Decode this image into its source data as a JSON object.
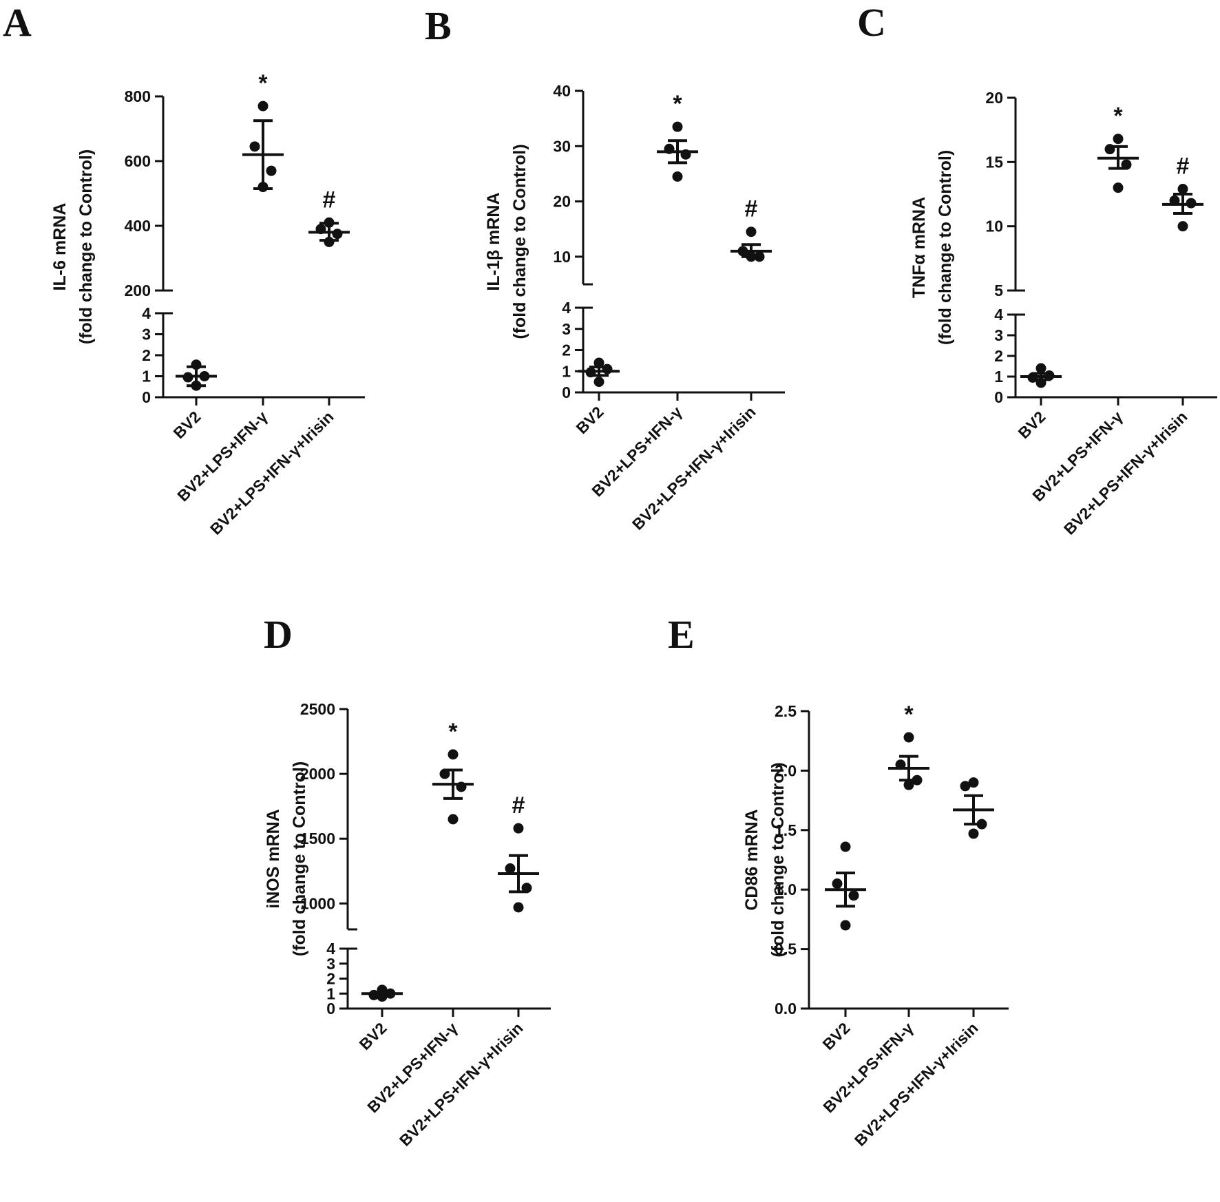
{
  "chart_data": [
    {
      "panel": "A",
      "type": "scatter",
      "ylabel": [
        "IL-6 mRNA",
        "(fold change to Control)"
      ],
      "categories": [
        "BV2",
        "BV2+LPS+IFN-γ",
        "BV2+LPS+IFN-γ+Irisin"
      ],
      "axis_break": true,
      "lower_ylim": [
        0,
        4
      ],
      "lower_ticks": [
        0,
        1,
        2,
        3,
        4
      ],
      "upper_ylim": [
        200,
        800
      ],
      "upper_ticks": [
        200,
        400,
        600,
        800
      ],
      "groups": [
        {
          "points": [
            0.55,
            0.95,
            1.0,
            1.55
          ],
          "mean": 1.0,
          "err_low": 0.55,
          "err_high": 1.45,
          "sig": ""
        },
        {
          "points": [
            770,
            645,
            570,
            520
          ],
          "mean": 620,
          "err_low": 515,
          "err_high": 725,
          "sig": "*"
        },
        {
          "points": [
            410,
            390,
            375,
            350
          ],
          "mean": 380,
          "err_low": 355,
          "err_high": 408,
          "sig": "#"
        }
      ]
    },
    {
      "panel": "B",
      "type": "scatter",
      "ylabel": [
        "IL-1β mRNA",
        "(fold change to Control)"
      ],
      "categories": [
        "BV2",
        "BV2+LPS+IFN-γ",
        "BV2+LPS+IFN-γ+Irisin"
      ],
      "axis_break": true,
      "lower_ylim": [
        0,
        4
      ],
      "lower_ticks": [
        0,
        1,
        2,
        3,
        4
      ],
      "upper_ylim": [
        5,
        40
      ],
      "upper_ticks": [
        10,
        20,
        30,
        40
      ],
      "groups": [
        {
          "points": [
            0.5,
            0.95,
            1.1,
            1.4
          ],
          "mean": 1.0,
          "err_low": 0.8,
          "err_high": 1.2,
          "sig": ""
        },
        {
          "points": [
            33.5,
            29.5,
            28.5,
            24.5
          ],
          "mean": 29.0,
          "err_low": 27.0,
          "err_high": 31.0,
          "sig": "*"
        },
        {
          "points": [
            14.5,
            11.0,
            10.0,
            10.0
          ],
          "mean": 11.0,
          "err_low": 10.0,
          "err_high": 12.2,
          "sig": "#"
        }
      ]
    },
    {
      "panel": "C",
      "type": "scatter",
      "ylabel": [
        "TNFα mRNA",
        "(fold change to Control)"
      ],
      "categories": [
        "BV2",
        "BV2+LPS+IFN-γ",
        "BV2+LPS+IFN-γ+Irisin"
      ],
      "axis_break": true,
      "lower_ylim": [
        0,
        4
      ],
      "lower_ticks": [
        0,
        1,
        2,
        3,
        4
      ],
      "upper_ylim": [
        5,
        20
      ],
      "upper_ticks": [
        5,
        10,
        15,
        20
      ],
      "groups": [
        {
          "points": [
            0.7,
            0.95,
            1.05,
            1.4
          ],
          "mean": 1.0,
          "err_low": 0.85,
          "err_high": 1.15,
          "sig": ""
        },
        {
          "points": [
            16.8,
            16.0,
            14.8,
            13.0
          ],
          "mean": 15.3,
          "err_low": 14.5,
          "err_high": 16.2,
          "sig": "*"
        },
        {
          "points": [
            12.9,
            12.0,
            11.8,
            10.0
          ],
          "mean": 11.7,
          "err_low": 11.0,
          "err_high": 12.5,
          "sig": "#"
        }
      ]
    },
    {
      "panel": "D",
      "type": "scatter",
      "ylabel": [
        "iNOS mRNA",
        "(fold change to Control)"
      ],
      "categories": [
        "BV2",
        "BV2+LPS+IFN-γ",
        "BV2+LPS+IFN-γ+Irisin"
      ],
      "axis_break": true,
      "lower_ylim": [
        0,
        4
      ],
      "lower_ticks": [
        0,
        1,
        2,
        3,
        4
      ],
      "upper_ylim": [
        800,
        2500
      ],
      "upper_ticks": [
        1000,
        1500,
        2000,
        2500
      ],
      "groups": [
        {
          "points": [
            0.8,
            0.9,
            1.0,
            1.25
          ],
          "mean": 1.0,
          "err_low": 0.9,
          "err_high": 1.1,
          "sig": ""
        },
        {
          "points": [
            2150,
            2000,
            1900,
            1650
          ],
          "mean": 1920,
          "err_low": 1810,
          "err_high": 2030,
          "sig": "*"
        },
        {
          "points": [
            1580,
            1270,
            1120,
            970
          ],
          "mean": 1230,
          "err_low": 1090,
          "err_high": 1370,
          "sig": "#"
        }
      ]
    },
    {
      "panel": "E",
      "type": "scatter",
      "ylabel": [
        "CD86 mRNA",
        "(fold change to Control)"
      ],
      "categories": [
        "BV2",
        "BV2+LPS+IFN-γ",
        "BV2+LPS+IFN-γ+Irisin"
      ],
      "axis_break": false,
      "ylim": [
        0,
        2.5
      ],
      "ticks": [
        "0.0",
        "0.5",
        "1.0",
        "1.5",
        "2.0",
        "2.5"
      ],
      "groups": [
        {
          "points": [
            1.36,
            1.05,
            0.95,
            0.7
          ],
          "mean": 1.0,
          "err_low": 0.86,
          "err_high": 1.14,
          "sig": ""
        },
        {
          "points": [
            2.28,
            2.05,
            1.92,
            1.88
          ],
          "mean": 2.02,
          "err_low": 1.92,
          "err_high": 2.12,
          "sig": "*"
        },
        {
          "points": [
            1.9,
            1.87,
            1.55,
            1.47
          ],
          "mean": 1.67,
          "err_low": 1.55,
          "err_high": 1.79,
          "sig": ""
        }
      ]
    }
  ]
}
